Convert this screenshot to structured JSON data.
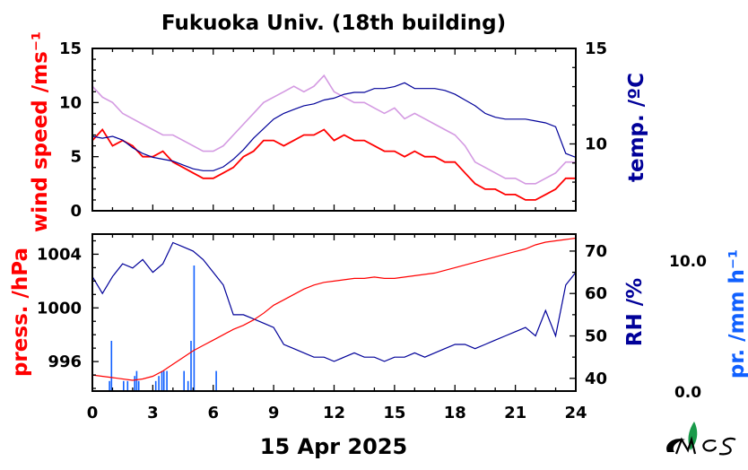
{
  "title": "Fukuoka Univ. (18th building)",
  "date_label": "15 Apr 2025",
  "colors": {
    "red": "#ff0000",
    "navy": "#000099",
    "blue": "#1060ff",
    "violet": "#cc88dd",
    "black": "#000000"
  },
  "chart_data": [
    {
      "type": "line",
      "panel": "top",
      "xlim": [
        0,
        24
      ],
      "ylim": [
        0,
        15
      ],
      "ylabel": "wind speed /ms⁻¹",
      "y_ticks": [
        "0",
        "5",
        "10",
        "15"
      ],
      "right_ylabel": "temp. /ºC",
      "right_ylim": [
        6.5,
        15
      ],
      "right_ticks": [
        "10",
        "15"
      ],
      "series": [
        {
          "role": "wind speed mean",
          "color": "#ff0000",
          "x": [
            0,
            0.5,
            1,
            1.5,
            2,
            2.5,
            3,
            3.5,
            4,
            4.5,
            5,
            5.5,
            6,
            6.5,
            7,
            7.5,
            8,
            8.5,
            9,
            9.5,
            10,
            10.5,
            11,
            11.5,
            12,
            12.5,
            13,
            13.5,
            14,
            14.5,
            15,
            15.5,
            16,
            16.5,
            17,
            17.5,
            18,
            18.5,
            19,
            19.5,
            20,
            20.5,
            21,
            21.5,
            22,
            22.5,
            23,
            23.5,
            24
          ],
          "values": [
            6.5,
            7.5,
            6.0,
            6.5,
            6.0,
            5.0,
            5.0,
            5.5,
            4.5,
            4.0,
            3.5,
            3.0,
            3.0,
            3.5,
            4.0,
            5.0,
            5.5,
            6.5,
            6.5,
            6.0,
            6.5,
            7.0,
            7.0,
            7.5,
            6.5,
            7.0,
            6.5,
            6.5,
            6.0,
            5.5,
            5.5,
            5.0,
            5.5,
            5.0,
            5.0,
            4.5,
            4.5,
            3.5,
            2.5,
            2.0,
            2.0,
            1.5,
            1.5,
            1.0,
            1.0,
            1.5,
            2.0,
            3.0,
            3.0
          ]
        },
        {
          "role": "wind speed gust",
          "color": "#cc88dd",
          "x": [
            0,
            0.5,
            1,
            1.5,
            2,
            2.5,
            3,
            3.5,
            4,
            4.5,
            5,
            5.5,
            6,
            6.5,
            7,
            7.5,
            8,
            8.5,
            9,
            9.5,
            10,
            10.5,
            11,
            11.5,
            12,
            12.5,
            13,
            13.5,
            14,
            14.5,
            15,
            15.5,
            16,
            16.5,
            17,
            17.5,
            18,
            18.5,
            19,
            19.5,
            20,
            20.5,
            21,
            21.5,
            22,
            22.5,
            23,
            23.5,
            24
          ],
          "values": [
            11.5,
            10.5,
            10.0,
            9.0,
            8.5,
            8.0,
            7.5,
            7.0,
            7.0,
            6.5,
            6.0,
            5.5,
            5.5,
            6.0,
            7.0,
            8.0,
            9.0,
            10.0,
            10.5,
            11.0,
            11.5,
            11.0,
            11.5,
            12.5,
            11.0,
            10.5,
            10.0,
            10.0,
            9.5,
            9.0,
            9.5,
            8.5,
            9.0,
            8.5,
            8.0,
            7.5,
            7.0,
            6.0,
            4.5,
            4.0,
            3.5,
            3.0,
            3.0,
            2.5,
            2.5,
            3.0,
            3.5,
            4.5,
            4.5
          ]
        },
        {
          "role": "temperature",
          "axis": "right",
          "color": "#000099",
          "x": [
            0,
            0.5,
            1,
            1.5,
            2,
            2.5,
            3,
            3.5,
            4,
            4.5,
            5,
            5.5,
            6,
            6.5,
            7,
            7.5,
            8,
            8.5,
            9,
            9.5,
            10,
            10.5,
            11,
            11.5,
            12,
            12.5,
            13,
            13.5,
            14,
            14.5,
            15,
            15.5,
            16,
            16.5,
            17,
            17.5,
            18,
            18.5,
            19,
            19.5,
            20,
            20.5,
            21,
            21.5,
            22,
            22.5,
            23,
            23.5,
            24
          ],
          "values": [
            10.4,
            10.3,
            10.4,
            10.2,
            9.8,
            9.5,
            9.3,
            9.2,
            9.1,
            8.9,
            8.7,
            8.6,
            8.6,
            8.8,
            9.2,
            9.7,
            10.3,
            10.8,
            11.3,
            11.6,
            11.8,
            12.0,
            12.1,
            12.3,
            12.4,
            12.6,
            12.7,
            12.7,
            12.9,
            12.9,
            13.0,
            13.2,
            12.9,
            12.9,
            12.9,
            12.8,
            12.6,
            12.3,
            12.0,
            11.6,
            11.4,
            11.3,
            11.3,
            11.3,
            11.2,
            11.1,
            10.9,
            9.5,
            9.3
          ]
        }
      ]
    },
    {
      "type": "line",
      "panel": "bottom",
      "xlim": [
        0,
        24
      ],
      "x_ticks": [
        "0",
        "3",
        "6",
        "9",
        "12",
        "15",
        "18",
        "21",
        "24"
      ],
      "ylim": [
        993.8,
        1005.5
      ],
      "ylabel": "press. /hPa",
      "y_ticks": [
        "996",
        "1000",
        "1004"
      ],
      "right_ylabel": "RH /%",
      "right_ylim": [
        37,
        74
      ],
      "right_ticks": [
        "40",
        "50",
        "60",
        "70"
      ],
      "precip_label": "pr. /mm h⁻¹",
      "precip_ticks": [
        "0.0",
        "10.0"
      ],
      "precip_ylim": [
        0,
        12.5
      ],
      "series": [
        {
          "role": "pressure",
          "color": "#ff0000",
          "x": [
            0,
            1,
            2,
            2.5,
            3,
            3.5,
            4,
            4.5,
            5,
            5.5,
            6,
            6.5,
            7,
            7.5,
            8,
            8.5,
            9,
            9.5,
            10,
            10.5,
            11,
            11.5,
            12,
            12.5,
            13,
            13.5,
            14,
            14.5,
            15,
            15.5,
            16,
            16.5,
            17,
            17.5,
            18,
            18.5,
            19,
            19.5,
            20,
            20.5,
            21,
            21.5,
            22,
            22.5,
            23,
            23.5,
            24
          ],
          "values": [
            995.0,
            994.8,
            994.6,
            994.7,
            994.9,
            995.3,
            995.8,
            996.3,
            996.8,
            997.2,
            997.6,
            998.0,
            998.4,
            998.7,
            999.1,
            999.6,
            1000.2,
            1000.6,
            1001.0,
            1001.4,
            1001.7,
            1001.9,
            1002.0,
            1002.1,
            1002.2,
            1002.2,
            1002.3,
            1002.2,
            1002.2,
            1002.3,
            1002.4,
            1002.5,
            1002.6,
            1002.8,
            1003.0,
            1003.2,
            1003.4,
            1003.6,
            1003.8,
            1004.0,
            1004.2,
            1004.4,
            1004.7,
            1004.9,
            1005.0,
            1005.1,
            1005.2
          ]
        },
        {
          "role": "relative humidity",
          "axis": "right",
          "color": "#000099",
          "x": [
            0,
            0.5,
            1,
            1.5,
            2,
            2.5,
            3,
            3.5,
            4,
            4.5,
            5,
            5.5,
            6,
            6.5,
            7,
            7.5,
            8,
            8.5,
            9,
            9.5,
            10,
            10.5,
            11,
            11.5,
            12,
            12.5,
            13,
            13.5,
            14,
            14.5,
            15,
            15.5,
            16,
            16.5,
            17,
            17.5,
            18,
            18.5,
            19,
            19.5,
            20,
            20.5,
            21,
            21.5,
            22,
            22.5,
            23,
            23.5,
            24
          ],
          "values": [
            64,
            60,
            64,
            67,
            66,
            68,
            65,
            67,
            72,
            71,
            70,
            68,
            65,
            62,
            55,
            55,
            54,
            53,
            52,
            48,
            47,
            46,
            45,
            45,
            44,
            45,
            46,
            45,
            45,
            44,
            45,
            45,
            46,
            45,
            46,
            47,
            48,
            48,
            47,
            48,
            49,
            50,
            51,
            52,
            50,
            56,
            50,
            62,
            65
          ]
        },
        {
          "role": "precipitation",
          "type": "bar",
          "color": "#1060ff",
          "x": [
            0.85,
            0.95,
            1.55,
            1.75,
            2.1,
            2.2,
            2.3,
            3.15,
            3.3,
            3.45,
            3.55,
            3.7,
            4.55,
            4.75,
            4.9,
            5.05,
            6.15
          ],
          "values": [
            0.8,
            4.0,
            0.8,
            0.8,
            1.2,
            1.6,
            0.8,
            0.8,
            1.2,
            1.6,
            1.6,
            1.6,
            1.6,
            0.8,
            4.0,
            10.0,
            1.6
          ]
        }
      ]
    }
  ]
}
